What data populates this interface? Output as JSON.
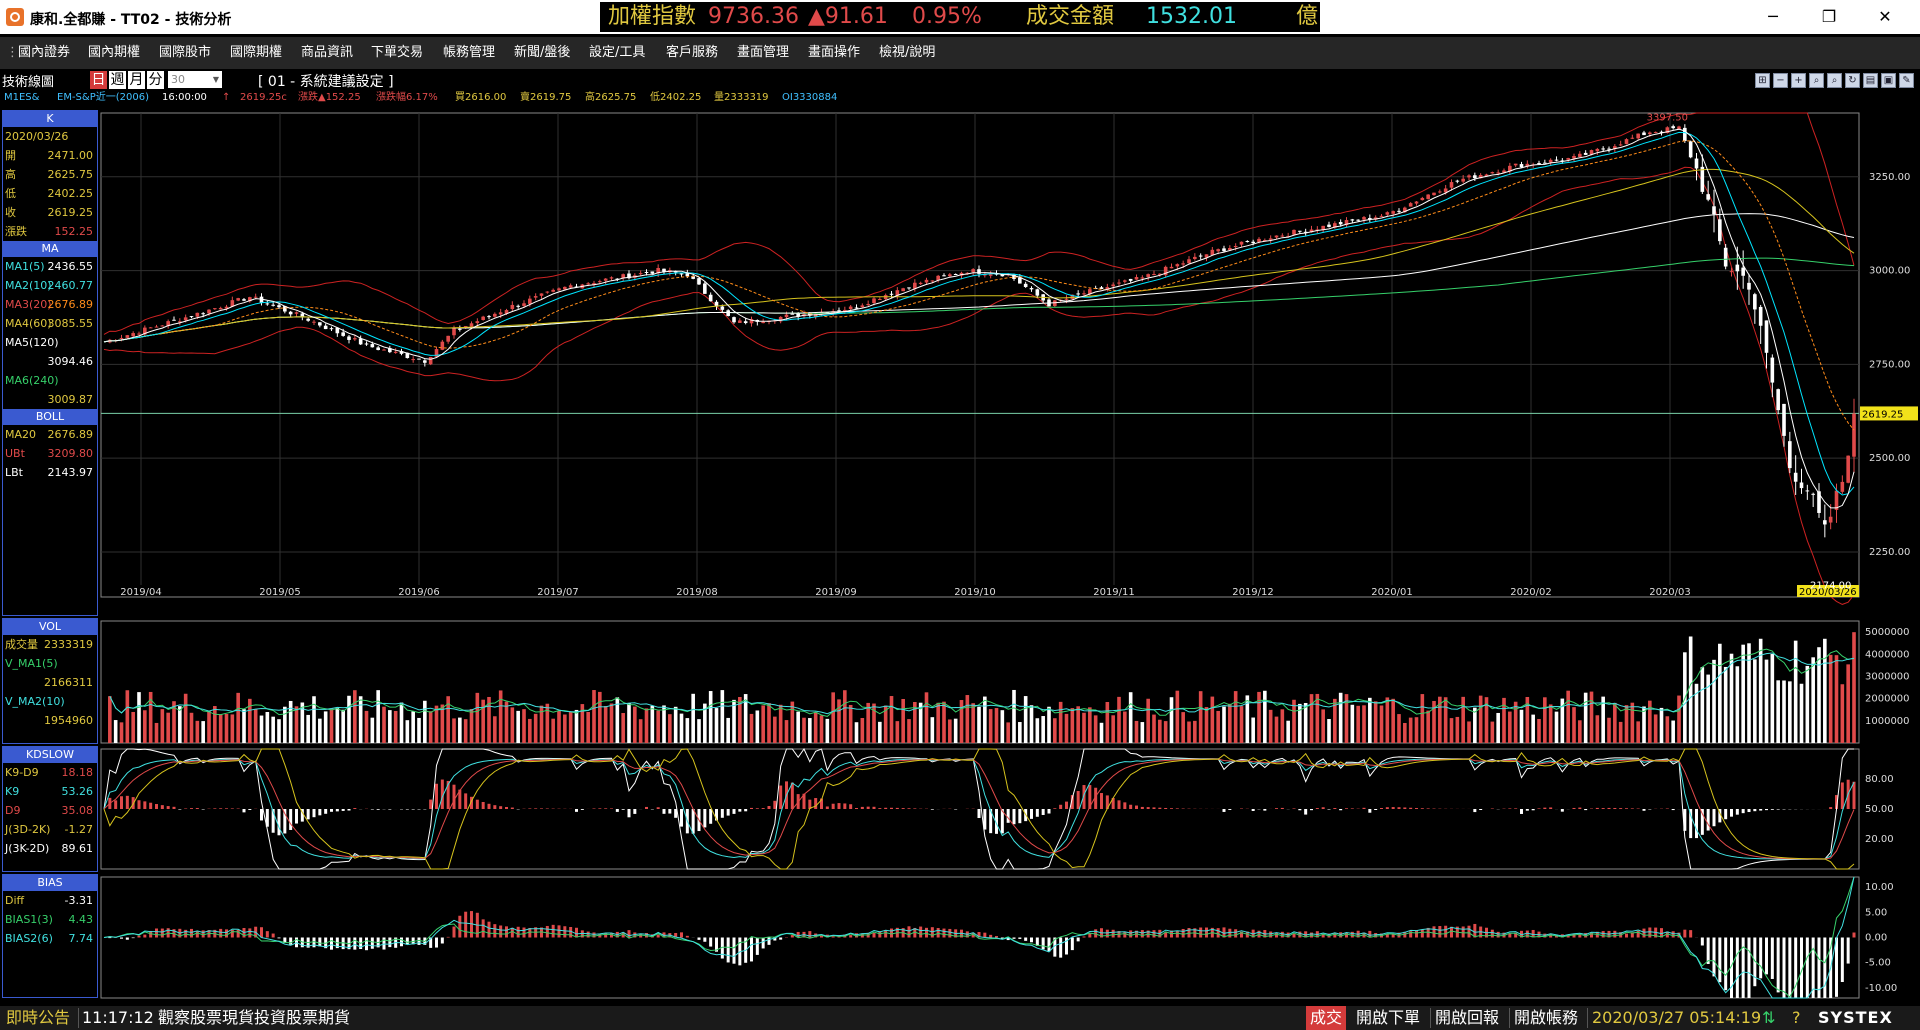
{
  "window": {
    "title": "康和.全都賺 - TT02 - 技術分析"
  },
  "ticker": {
    "index_label": "加權指數",
    "index_value": "9736.36",
    "change": "▲91.61",
    "change_pct": "0.95%",
    "volume_label": "成交金額",
    "volume_value": "1532.01",
    "unit": "億"
  },
  "menu": [
    "國內證券",
    "國內期權",
    "國際股市",
    "國際期權",
    "商品資訊",
    "下單交易",
    "帳務管理",
    "新聞/盤後",
    "設定/工具",
    "客戶服務",
    "畫面管理",
    "畫面操作",
    "檢視/說明"
  ],
  "toolbar": {
    "label": "技術線圖",
    "periods": [
      "日",
      "週",
      "月",
      "分"
    ],
    "minute_value": "30",
    "subtitle": "[ 01 - 系統建議設定 ]"
  },
  "info": {
    "symbol": "M1ES&",
    "name": "EM-S&P近一(2006)",
    "time": "16:00:00",
    "price": "2619.25c",
    "change": "漲跌▲152.25",
    "change_pct": "漲跌幅6.17%",
    "bid": "買2616.00",
    "ask": "賣2619.75",
    "high": "高2625.75",
    "low": "低2402.25",
    "volume": "量2333319",
    "oi": "OI3330884"
  },
  "k_panel": {
    "title": "K",
    "date": "2020/03/26",
    "rows": [
      {
        "k": "開",
        "v": "2471.00"
      },
      {
        "k": "高",
        "v": "2625.75"
      },
      {
        "k": "低",
        "v": "2402.25"
      },
      {
        "k": "收",
        "v": "2619.25"
      },
      {
        "k": "漲跌",
        "v": "152.25"
      }
    ]
  },
  "ma_panel": {
    "title": "MA",
    "ma1": "MA1(5)",
    "ma1v": "2436.55",
    "ma2": "MA2(10)",
    "ma2v": "2460.77",
    "ma3": "MA3(20)",
    "ma3v": "2676.89",
    "ma4": "MA4(60)",
    "ma4v": "3085.55",
    "ma5": "MA5(120)",
    "ma5v": "3094.46",
    "ma6": "MA6(240)",
    "ma6v": "3009.87"
  },
  "boll_panel": {
    "title": "BOLL",
    "ma": "MA20",
    "mav": "2676.89",
    "ub": "UBt",
    "ubv": "3209.80",
    "lb": "LBt",
    "lbv": "2143.97"
  },
  "vol_panel": {
    "title": "VOL",
    "a": "成交量",
    "av": "2333319",
    "b": "V_MA1(5)",
    "bv": "2166311",
    "c": "V_MA2(10)",
    "cv": "1954960"
  },
  "kd_panel": {
    "title": "KDSLOW",
    "a": "K9-D9",
    "av": "18.18",
    "b": "K9",
    "bv": "53.26",
    "c": "D9",
    "cv": "35.08",
    "d": "J(3D-2K)",
    "dv": "-1.27",
    "e": "J(3K-2D)",
    "ev": "89.61"
  },
  "bias_panel": {
    "title": "BIAS",
    "a": "Diff",
    "av": "-3.31",
    "b": "BIAS1(3)",
    "bv": "4.43",
    "c": "BIAS2(6)",
    "cv": "7.74"
  },
  "chart_data": {
    "type": "candlestick",
    "x_labels": [
      "2019/04",
      "2019/05",
      "2019/06",
      "2019/07",
      "2019/08",
      "2019/09",
      "2019/10",
      "2019/11",
      "2019/12",
      "2020/01",
      "2020/02",
      "2020/03"
    ],
    "last_date": "2020/03/26",
    "price_ticks": [
      "3250.00",
      "3000.00",
      "2750.00",
      "2500.00",
      "2250.00"
    ],
    "price_range": [
      2130,
      3420
    ],
    "high_mark": "3397.50",
    "low_mark": "2174.00",
    "last_price": "2619.25",
    "close_anchors": [
      [
        0,
        2810
      ],
      [
        15,
        2880
      ],
      [
        25,
        2930
      ],
      [
        35,
        2870
      ],
      [
        45,
        2800
      ],
      [
        55,
        2760
      ],
      [
        60,
        2840
      ],
      [
        70,
        2905
      ],
      [
        80,
        2960
      ],
      [
        95,
        3000
      ],
      [
        100,
        2990
      ],
      [
        108,
        2860
      ],
      [
        118,
        2880
      ],
      [
        128,
        2900
      ],
      [
        138,
        2960
      ],
      [
        148,
        3000
      ],
      [
        155,
        2990
      ],
      [
        162,
        2910
      ],
      [
        168,
        2940
      ],
      [
        178,
        2980
      ],
      [
        190,
        3050
      ],
      [
        200,
        3090
      ],
      [
        210,
        3120
      ],
      [
        220,
        3150
      ],
      [
        232,
        3240
      ],
      [
        242,
        3280
      ],
      [
        252,
        3300
      ],
      [
        258,
        3330
      ],
      [
        265,
        3370
      ],
      [
        270,
        3380
      ],
      [
        274,
        3230
      ],
      [
        278,
        3020
      ],
      [
        282,
        2970
      ],
      [
        286,
        2700
      ],
      [
        289,
        2480
      ],
      [
        292,
        2420
      ],
      [
        295,
        2300
      ],
      [
        298,
        2440
      ],
      [
        300,
        2619
      ]
    ],
    "volume_ticks": [
      "5000000",
      "4000000",
      "3000000",
      "2000000",
      "1000000"
    ],
    "volume_range": [
      0,
      5500000
    ],
    "kd_ticks": [
      "80.00",
      "50.00",
      "20.00"
    ],
    "kd_range": [
      -10,
      110
    ],
    "bias_ticks": [
      "10.00",
      "5.00",
      "0.00",
      "-5.00",
      "-10.00"
    ],
    "bias_range": [
      -12,
      12
    ]
  },
  "status": {
    "label": "即時公告",
    "time": "11:17:12",
    "message": "觀察股票現貨投資股票期貨",
    "trade": "成交",
    "b1": "開啟下單",
    "b2": "開啟回報",
    "b3": "開啟帳務",
    "datetime": "2020/03/27 05:14:19",
    "brand": "SYSTEX"
  },
  "colors": {
    "up": "#e04a4a",
    "down": "#ffffff",
    "ma1": "#ffffff",
    "ma2": "#00e5ff",
    "ma3": "#ff8c1a",
    "ma4": "#d6c31d",
    "ma5": "#ffffff",
    "ma6": "#36d06a",
    "boll": "#cc2222"
  }
}
